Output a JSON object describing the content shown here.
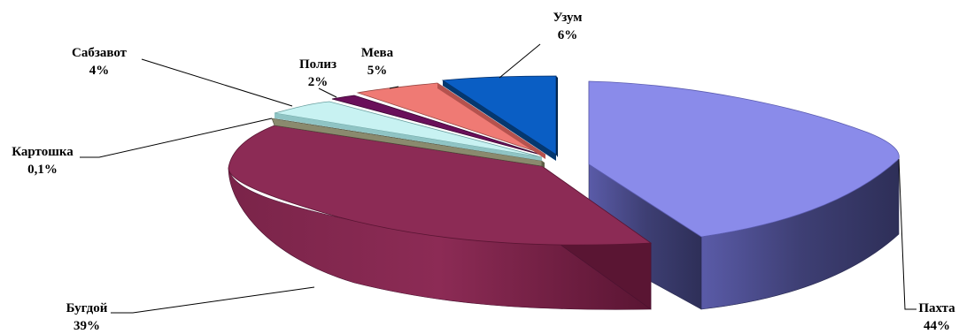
{
  "chart_data": {
    "type": "pie",
    "style": "3d-exploded",
    "slices": [
      {
        "label": "Пахта",
        "value": 44,
        "value_label": "44%",
        "color": "#8a8bea",
        "side_color": "#3e3f74"
      },
      {
        "label": "Бугдой",
        "value": 39,
        "value_label": "39%",
        "color": "#8c2b55",
        "side_color": "#6a1f40"
      },
      {
        "label": "Картошка",
        "value": 0.1,
        "value_label": "0,1%",
        "color": "#8a8a6e",
        "side_color": "#5f5f48"
      },
      {
        "label": "Сабзавот",
        "value": 4,
        "value_label": "4%",
        "color": "#c8f2f2",
        "side_color": "#8fc4c4"
      },
      {
        "label": "Полиз",
        "value": 2,
        "value_label": "2%",
        "color": "#6a0f5a",
        "side_color": "#4a0a3e"
      },
      {
        "label": "Мева",
        "value": 5,
        "value_label": "5%",
        "color": "#ef7a74",
        "side_color": "#b5524e"
      },
      {
        "label": "Узум",
        "value": 6,
        "value_label": "6%",
        "color": "#0a5ec4",
        "side_color": "#05386f"
      }
    ],
    "legend": "none"
  }
}
